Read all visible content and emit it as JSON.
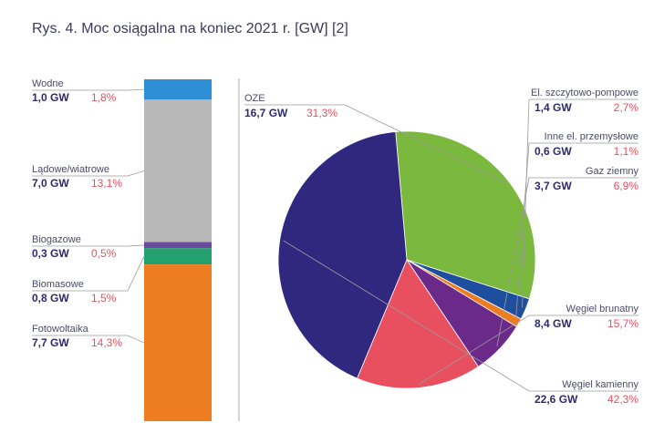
{
  "title": "Rys. 4. Moc osiągalna na koniec 2021 r. [GW] [2]",
  "chart_data": [
    {
      "type": "bar",
      "categories": [
        "Wodne",
        "Lądowe/wiatrowe",
        "Biogazowe",
        "Biomasowe",
        "Fotowoltaika"
      ],
      "values": [
        1.0,
        7.0,
        0.3,
        0.8,
        7.7
      ],
      "value_labels": [
        "1,0 GW",
        "7,0 GW",
        "0,3 GW",
        "0,8 GW",
        "7,7 GW"
      ],
      "shares": [
        1.8,
        13.1,
        0.5,
        1.5,
        14.3
      ],
      "share_labels": [
        "1,8%",
        "13,1%",
        "0,5%",
        "1,5%",
        "14,3%"
      ],
      "colors": [
        "#2e8fd6",
        "#b8b8b8",
        "#6a4a9e",
        "#22a06e",
        "#ee7d22"
      ]
    },
    {
      "type": "pie",
      "categories": [
        "OZE",
        "El. szczytowo-pompowe",
        "Inne el. przemysłowe",
        "Gaz ziemny",
        "Węgiel brunatny",
        "Węgiel kamienny"
      ],
      "values": [
        16.7,
        1.4,
        0.6,
        3.7,
        8.4,
        22.6
      ],
      "value_labels": [
        "16,7 GW",
        "1,4 GW",
        "0,6 GW",
        "3,7 GW",
        "8,4 GW",
        "22,6 GW"
      ],
      "shares": [
        31.3,
        2.7,
        1.1,
        6.9,
        15.7,
        42.3
      ],
      "share_labels": [
        "31,3%",
        "2,7%",
        "1,1%",
        "6,9%",
        "15,7%",
        "42,3%"
      ],
      "colors": [
        "#7bb83e",
        "#1e4f9e",
        "#ee7d22",
        "#6b2a8a",
        "#e8505f",
        "#30277f"
      ]
    }
  ]
}
